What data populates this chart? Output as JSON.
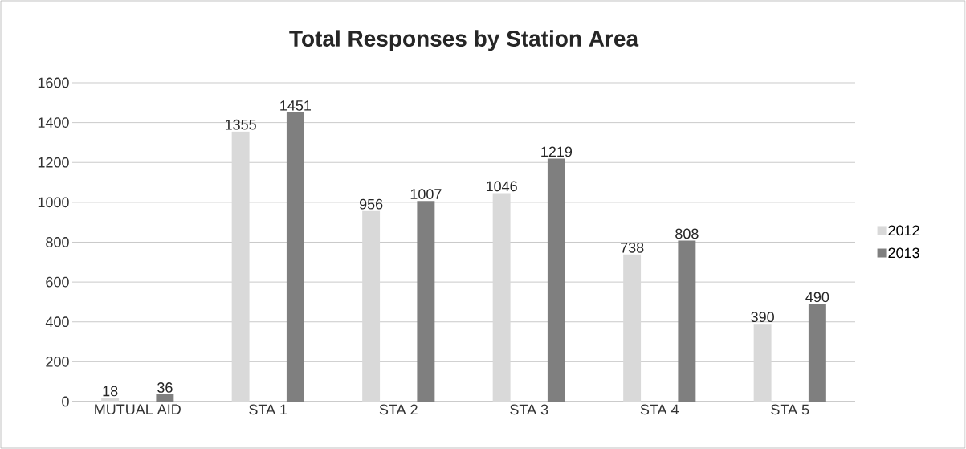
{
  "chart_data": {
    "type": "bar",
    "title": "Total Responses by Station Area",
    "categories": [
      "MUTUAL AID",
      "STA 1",
      "STA 2",
      "STA 3",
      "STA 4",
      "STA 5"
    ],
    "series": [
      {
        "name": "2012",
        "color": "#d9d9d9",
        "values": [
          18,
          1355,
          956,
          1046,
          738,
          390
        ]
      },
      {
        "name": "2013",
        "color": "#7f7f7f",
        "values": [
          36,
          1451,
          1007,
          1219,
          808,
          490
        ]
      }
    ],
    "ylim": [
      0,
      1600
    ],
    "yticks": [
      0,
      200,
      400,
      600,
      800,
      1000,
      1200,
      1400,
      1600
    ],
    "grid": "y",
    "legend": "right",
    "data_labels": true
  }
}
